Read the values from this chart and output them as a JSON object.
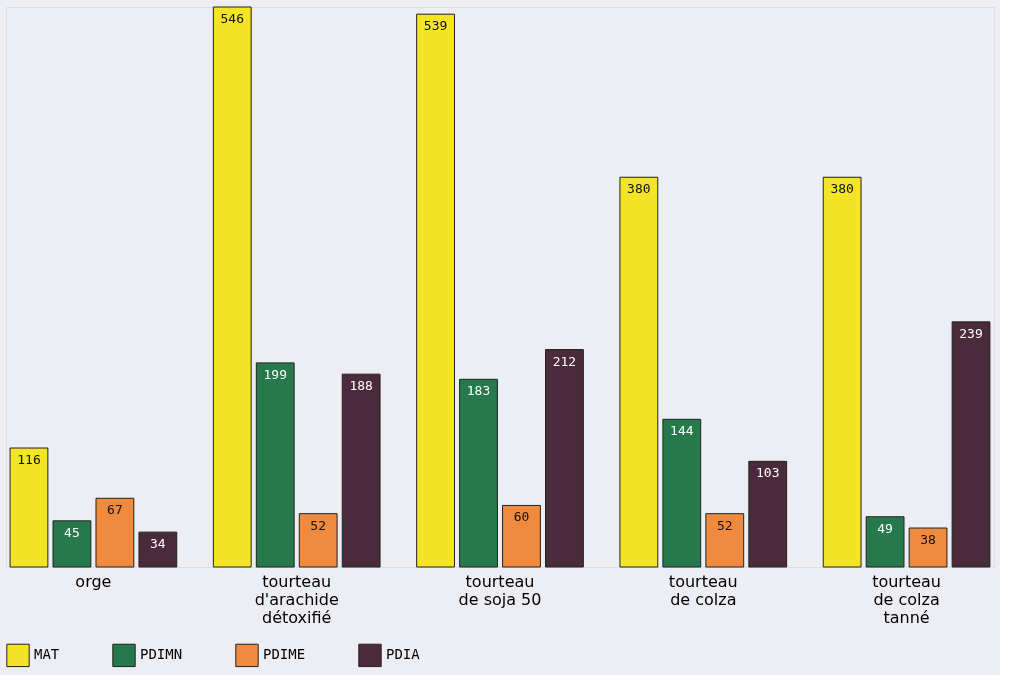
{
  "chart_data": {
    "type": "bar",
    "categories": [
      "orge",
      "tourteau\nd'arachide\ndétoxifié",
      "tourteau\nde soja 50",
      "tourteau\nde colza",
      "tourteau\nde colza\ntanné"
    ],
    "series": [
      {
        "name": "MAT",
        "color": "#f3e526",
        "values": [
          116,
          546,
          539,
          380,
          380
        ]
      },
      {
        "name": "PDIMN",
        "color": "#25794a",
        "values": [
          45,
          199,
          183,
          144,
          49
        ]
      },
      {
        "name": "PDIME",
        "color": "#f08a3e",
        "values": [
          67,
          52,
          60,
          52,
          38
        ]
      },
      {
        "name": "PDIA",
        "color": "#4b2a3b",
        "values": [
          34,
          188,
          212,
          103,
          239
        ]
      }
    ],
    "data_labels": true,
    "legend": "bottom",
    "grid": false
  }
}
